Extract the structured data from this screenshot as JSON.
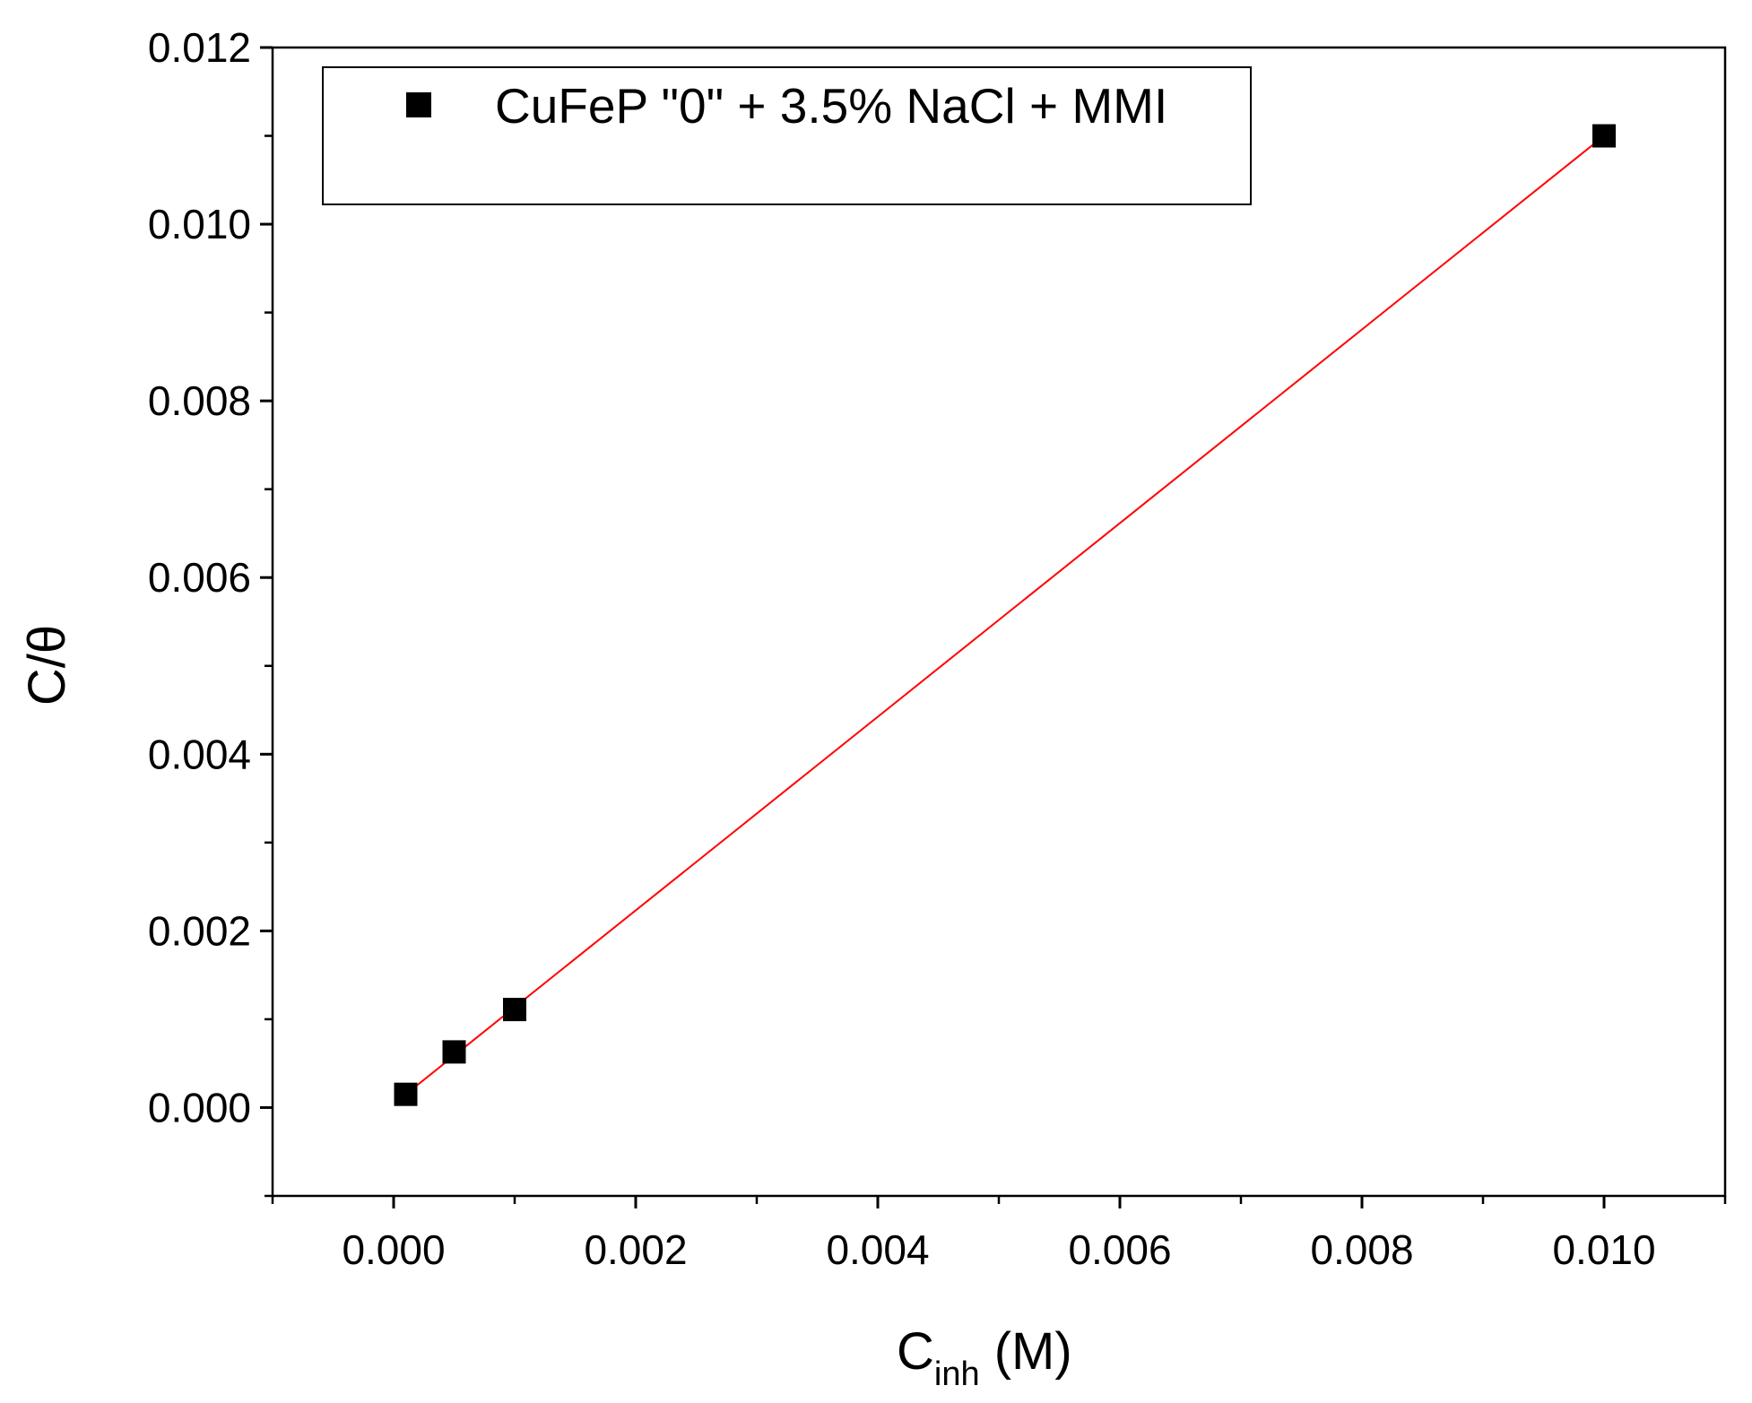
{
  "chart_data": {
    "type": "scatter",
    "xlabel": {
      "main": "C",
      "sub": "inh",
      "unit": " (M)"
    },
    "ylabel": "C/θ",
    "xlim": [
      -0.001,
      0.011
    ],
    "ylim": [
      -0.001,
      0.012
    ],
    "x_ticks": [
      0.0,
      0.002,
      0.004,
      0.006,
      0.008,
      0.01
    ],
    "x_tick_labels": [
      "0.000",
      "0.002",
      "0.004",
      "0.006",
      "0.008",
      "0.010"
    ],
    "x_minor_ticks": [
      -0.001,
      0.001,
      0.003,
      0.005,
      0.007,
      0.009,
      0.011
    ],
    "y_ticks": [
      0.0,
      0.002,
      0.004,
      0.006,
      0.008,
      0.01,
      0.012
    ],
    "y_tick_labels": [
      "0.000",
      "0.002",
      "0.004",
      "0.006",
      "0.008",
      "0.010",
      "0.012"
    ],
    "y_minor_ticks": [
      -0.001,
      0.001,
      0.003,
      0.005,
      0.007,
      0.009,
      0.011
    ],
    "series": [
      {
        "name": "CuFeP \"0\" + 3.5% NaCl + MMI",
        "marker": "square",
        "color": "#000000",
        "points": [
          {
            "x": 0.0001,
            "y": 0.00015
          },
          {
            "x": 0.0005,
            "y": 0.00063
          },
          {
            "x": 0.001,
            "y": 0.00111
          },
          {
            "x": 0.01,
            "y": 0.011
          }
        ]
      }
    ],
    "fit_line": {
      "color": "#ff0000",
      "x": [
        0.0001,
        0.01
      ],
      "y": [
        0.00015,
        0.011
      ]
    },
    "legend": {
      "position": "top-left",
      "boxed": true
    },
    "grid": false
  }
}
